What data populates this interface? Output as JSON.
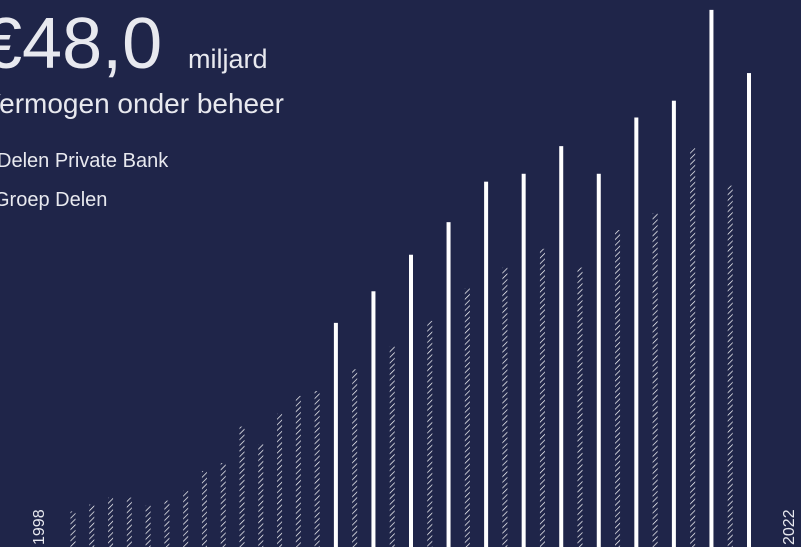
{
  "chart_data": {
    "type": "bar",
    "headline": "€48,0",
    "headline_unit": "miljard",
    "title": "Vermogen onder beheer",
    "axis_labels": [
      "1998",
      "2022"
    ],
    "categories": [
      null,
      null,
      null,
      null,
      null,
      null,
      null,
      null,
      null,
      null,
      null,
      null,
      null,
      null,
      null,
      null,
      null,
      null,
      null,
      null,
      null,
      null,
      null,
      null,
      null,
      null,
      null,
      null,
      null,
      null,
      null,
      null,
      null,
      null,
      null,
      null,
      null
    ],
    "series": [
      {
        "name": "Delen Private Bank",
        "color": "#ffffff",
        "style": "solid",
        "values": [
          null,
          null,
          null,
          null,
          null,
          null,
          null,
          null,
          null,
          null,
          null,
          null,
          null,
          null,
          22.7,
          null,
          25.9,
          null,
          29.6,
          null,
          32.9,
          null,
          37.0,
          null,
          37.8,
          null,
          40.6,
          null,
          37.8,
          null,
          43.5,
          null,
          45.2,
          null,
          54.4,
          null,
          48.0
        ]
      },
      {
        "name": "Groep Delen",
        "color": "#ffffff",
        "style": "hatched",
        "values": [
          3.6,
          4.3,
          5.0,
          5.0,
          4.2,
          4.7,
          5.7,
          7.7,
          8.5,
          12.2,
          10.4,
          13.5,
          15.3,
          15.8,
          null,
          18.0,
          null,
          20.3,
          null,
          22.9,
          null,
          26.2,
          null,
          28.3,
          null,
          30.2,
          null,
          28.3,
          null,
          32.1,
          null,
          33.8,
          null,
          40.4,
          null,
          36.6,
          null
        ]
      }
    ],
    "ylim": [
      0,
      55.4
    ]
  }
}
